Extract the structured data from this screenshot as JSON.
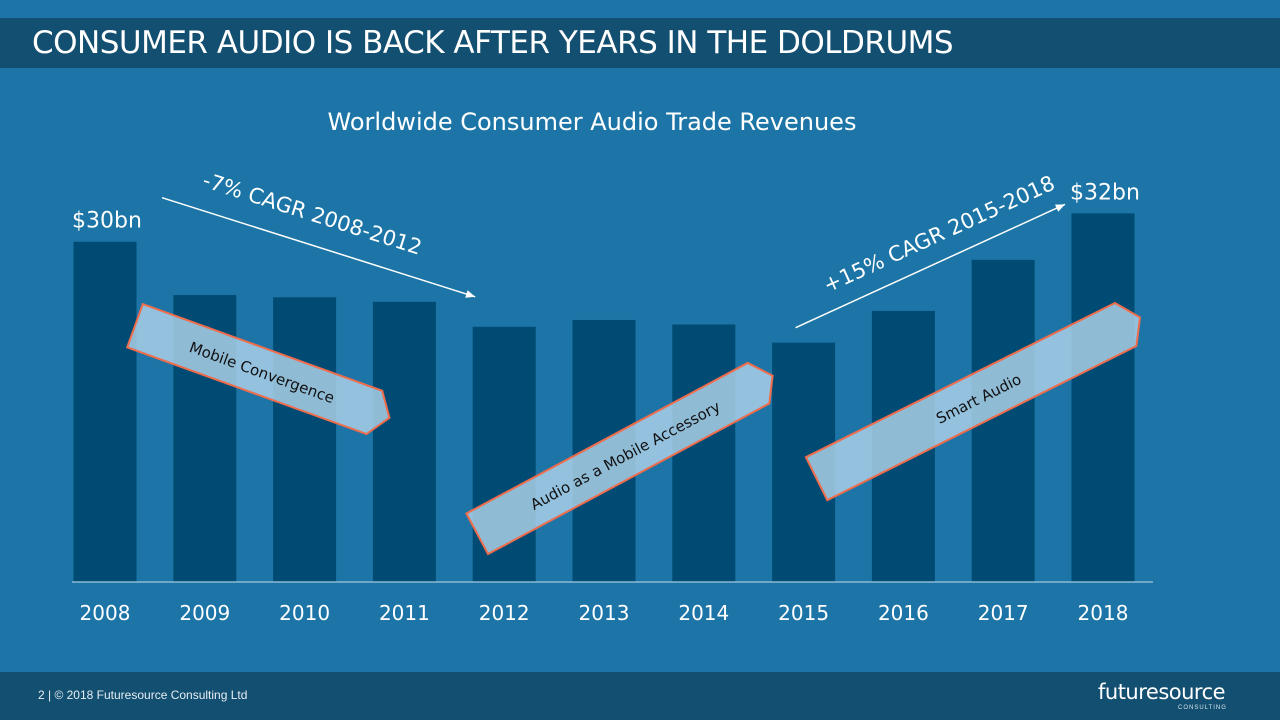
{
  "slide": {
    "title": "CONSUMER AUDIO IS BACK AFTER YEARS IN THE DOLDRUMS",
    "footer": "2  |  © 2018 Futuresource Consulting Ltd",
    "logo": {
      "word": "futuresource",
      "sub": "CONSULTING"
    }
  },
  "colors": {
    "background": "#1c75a6",
    "band": "#134f70",
    "bar": "#004b73",
    "arrow_fill": "#a9cfe6",
    "arrow_stroke": "#f06c4b"
  },
  "chart_data": {
    "type": "bar",
    "title": "Worldwide Consumer Audio Trade Revenues",
    "categories": [
      "2008",
      "2009",
      "2010",
      "2011",
      "2012",
      "2013",
      "2014",
      "2015",
      "2016",
      "2017",
      "2018"
    ],
    "values": [
      30,
      25.3,
      25.1,
      24.7,
      22.5,
      23.1,
      22.7,
      21.1,
      23.9,
      28.4,
      32.5
    ],
    "unit": "$bn",
    "ylim": [
      0,
      35
    ],
    "grid": false,
    "value_labels": [
      {
        "category": "2008",
        "text": "$30bn"
      },
      {
        "category": "2018",
        "text": "$32bn"
      }
    ],
    "annotations": [
      {
        "text": "-7% CAGR 2008-2012",
        "from": "2008",
        "to": "2012",
        "trend": "down"
      },
      {
        "text": "+15% CAGR 2015-2018",
        "from": "2015",
        "to": "2018",
        "trend": "up"
      }
    ],
    "phases": [
      {
        "label": "Mobile Convergence",
        "from": "2008",
        "to": "2011"
      },
      {
        "label": "Audio as a Mobile Accessory",
        "from": "2012",
        "to": "2015"
      },
      {
        "label": "Smart Audio",
        "from": "2015",
        "to": "2018"
      }
    ]
  }
}
